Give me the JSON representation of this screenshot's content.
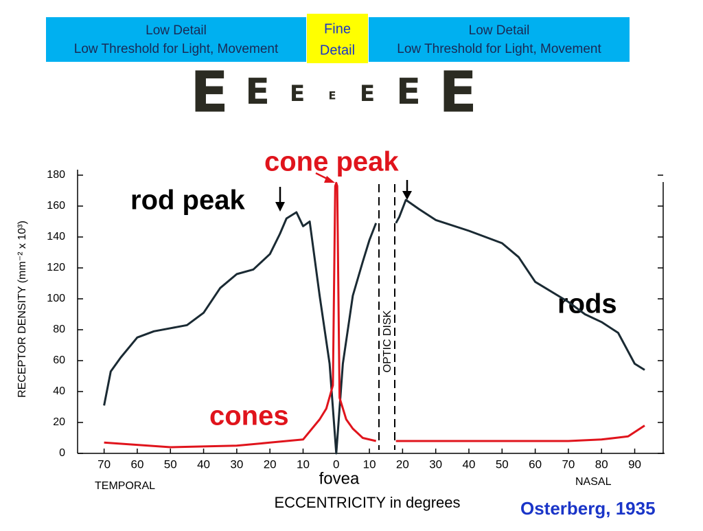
{
  "header": {
    "boxes": [
      {
        "lines": [
          "Low Detail",
          "Low Threshold for Light, Movement"
        ],
        "color": "#00b0f0"
      },
      {
        "lines": [
          "Fine",
          "Detail"
        ],
        "color": "#ffff00"
      },
      {
        "lines": [
          "Low Detail",
          "Low Threshold for Light, Movement"
        ],
        "color": "#00b0f0"
      }
    ],
    "letters": [
      "E",
      "E",
      "E",
      "E",
      "E",
      "E",
      "E"
    ]
  },
  "chart_data": {
    "type": "line",
    "xlabel": "ECCENTRICITY in degrees",
    "ylabel": "RECEPTOR DENSITY (mm⁻² x 10³)",
    "xlim": [
      -78,
      99
    ],
    "ylim": [
      0,
      180
    ],
    "xticks": [
      {
        "value": -70,
        "label": "70"
      },
      {
        "value": -60,
        "label": "60"
      },
      {
        "value": -50,
        "label": "50"
      },
      {
        "value": -40,
        "label": "40"
      },
      {
        "value": -30,
        "label": "30"
      },
      {
        "value": -20,
        "label": "20"
      },
      {
        "value": -10,
        "label": "10"
      },
      0,
      10,
      20,
      30,
      40,
      50,
      60,
      70,
      80,
      90
    ],
    "yticks": [
      0,
      20,
      40,
      60,
      80,
      100,
      120,
      140,
      160,
      180
    ],
    "annotations": {
      "cone_peak": "cone peak",
      "rod_peak": "rod peak",
      "rods": "rods",
      "cones": "cones",
      "fovea": "fovea",
      "optic_disk": "OPTIC DISK",
      "temporal": "TEMPORAL",
      "nasal": "NASAL",
      "credit": "Osterberg, 1935"
    },
    "series": [
      {
        "name": "rods",
        "color": "#1a2a33",
        "x": [
          -70,
          -68,
          -65,
          -60,
          -55,
          -50,
          -45,
          -40,
          -35,
          -30,
          -25,
          -20,
          -17,
          -15,
          -12,
          -10,
          -8,
          -5,
          -2,
          0,
          2,
          5,
          8,
          10,
          12,
          15,
          18,
          19,
          21,
          25,
          30,
          40,
          50,
          55,
          60,
          70,
          75,
          80,
          85,
          90,
          93
        ],
        "values": [
          31,
          53,
          62,
          75,
          79,
          81,
          83,
          91,
          107,
          116,
          119,
          129,
          142,
          152,
          156,
          147,
          150,
          102,
          58,
          0,
          58,
          102,
          124,
          138,
          149,
          null,
          149,
          153,
          164,
          158,
          151,
          144,
          136,
          127,
          111,
          98,
          90,
          85,
          78,
          58,
          54
        ]
      },
      {
        "name": "cones",
        "color": "#e0141c",
        "x": [
          -70,
          -50,
          -30,
          -20,
          -10,
          -5,
          -3,
          -1,
          -0.3,
          0,
          0.3,
          1,
          3,
          5,
          8,
          12,
          15,
          18,
          30,
          50,
          70,
          80,
          88,
          93
        ],
        "values": [
          7,
          4,
          5,
          7,
          9,
          22,
          29,
          44,
          173,
          175,
          173,
          36,
          22,
          16,
          10,
          8,
          null,
          8,
          8,
          8,
          8,
          9,
          11,
          18
        ]
      }
    ]
  }
}
